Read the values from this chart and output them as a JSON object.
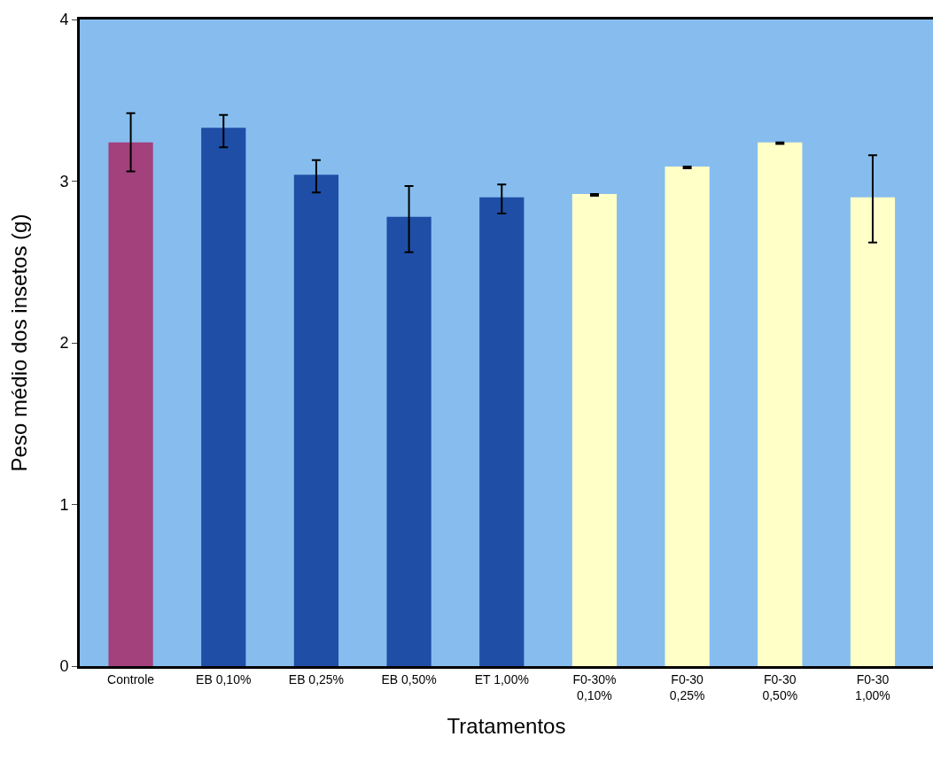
{
  "chart_data": {
    "type": "bar",
    "xlabel": "Tratamentos",
    "ylabel": "Peso médio dos insetos (g)",
    "categories": [
      "Controle",
      "EB 0,10%",
      "EB 0,25%",
      "EB 0,50%",
      "ET 1,00%",
      "F0-30%\n0,10%",
      "F0-30\n0,25%",
      "F0-30\n0,50%",
      "F0-30\n1,00%"
    ],
    "values": [
      3.24,
      3.33,
      3.04,
      2.78,
      2.9,
      2.92,
      3.09,
      3.24,
      2.9
    ],
    "errors": [
      [
        3.06,
        3.42
      ],
      [
        3.21,
        3.41
      ],
      [
        2.93,
        3.13
      ],
      [
        2.56,
        2.97
      ],
      [
        2.8,
        2.98
      ],
      [
        2.91,
        2.92
      ],
      [
        3.08,
        3.09
      ],
      [
        3.23,
        3.24
      ],
      [
        2.62,
        3.16
      ]
    ],
    "colors": [
      "#a3417d",
      "#1f4ea6",
      "#1f4ea6",
      "#1f4ea6",
      "#1f4ea6",
      "#ffffc8",
      "#ffffc8",
      "#ffffc8",
      "#ffffc8"
    ],
    "ylim": [
      0,
      4
    ],
    "yticks": [
      0,
      1,
      2,
      3,
      4
    ],
    "grid": false
  }
}
